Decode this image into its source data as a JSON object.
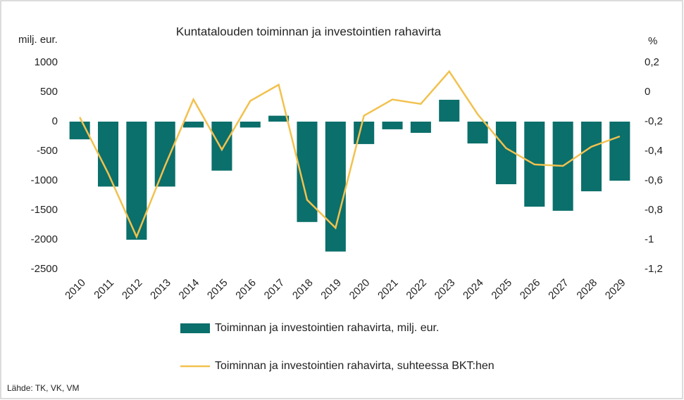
{
  "chart_data": {
    "type": "bar-line",
    "title": "Kuntatalouden toiminnan ja investointien rahavirta",
    "y_label": "milj. eur.",
    "y2_label": "%",
    "source": "Lähde: TK, VK, VM",
    "categories": [
      "2010",
      "2011",
      "2012",
      "2013",
      "2014",
      "2015",
      "2016",
      "2017",
      "2018",
      "2019",
      "2020",
      "2021",
      "2022",
      "2023",
      "2024",
      "2025",
      "2026",
      "2027",
      "2028",
      "2029"
    ],
    "series": [
      {
        "name": "Toiminnan ja investointien rahavirta, milj. eur.",
        "type": "bar",
        "color": "#0b6f6b",
        "values": [
          -300,
          -1100,
          -2000,
          -1100,
          -100,
          -830,
          -100,
          100,
          -1700,
          -2200,
          -380,
          -130,
          -190,
          370,
          -370,
          -1060,
          -1440,
          -1510,
          -1180,
          -1000
        ]
      },
      {
        "name": "Toiminnan ja investointien rahavirta, suhteessa BKT:hen",
        "type": "line",
        "axis": "y2",
        "color": "#f2c14e",
        "values": [
          -0.17,
          -0.55,
          -0.98,
          -0.5,
          -0.05,
          -0.39,
          -0.06,
          0.05,
          -0.73,
          -0.92,
          -0.16,
          -0.05,
          -0.08,
          0.14,
          -0.15,
          -0.38,
          -0.49,
          -0.5,
          -0.37,
          -0.3
        ]
      }
    ],
    "ylim": [
      -2500,
      1000
    ],
    "yticks": [
      -2500,
      -2000,
      -1500,
      -1000,
      -500,
      0,
      500,
      1000
    ],
    "y2lim": [
      -1.2,
      0.2
    ],
    "y2ticks": [
      {
        "value": -1.2,
        "label": "-1,2"
      },
      {
        "value": -1,
        "label": "-1"
      },
      {
        "value": -0.8,
        "label": "-0,8"
      },
      {
        "value": -0.6,
        "label": "-0,6"
      },
      {
        "value": -0.4,
        "label": "-0,4"
      },
      {
        "value": -0.2,
        "label": "-0,2"
      },
      {
        "value": 0,
        "label": "0"
      },
      {
        "value": 0.2,
        "label": "0,2"
      }
    ],
    "grid": false
  }
}
